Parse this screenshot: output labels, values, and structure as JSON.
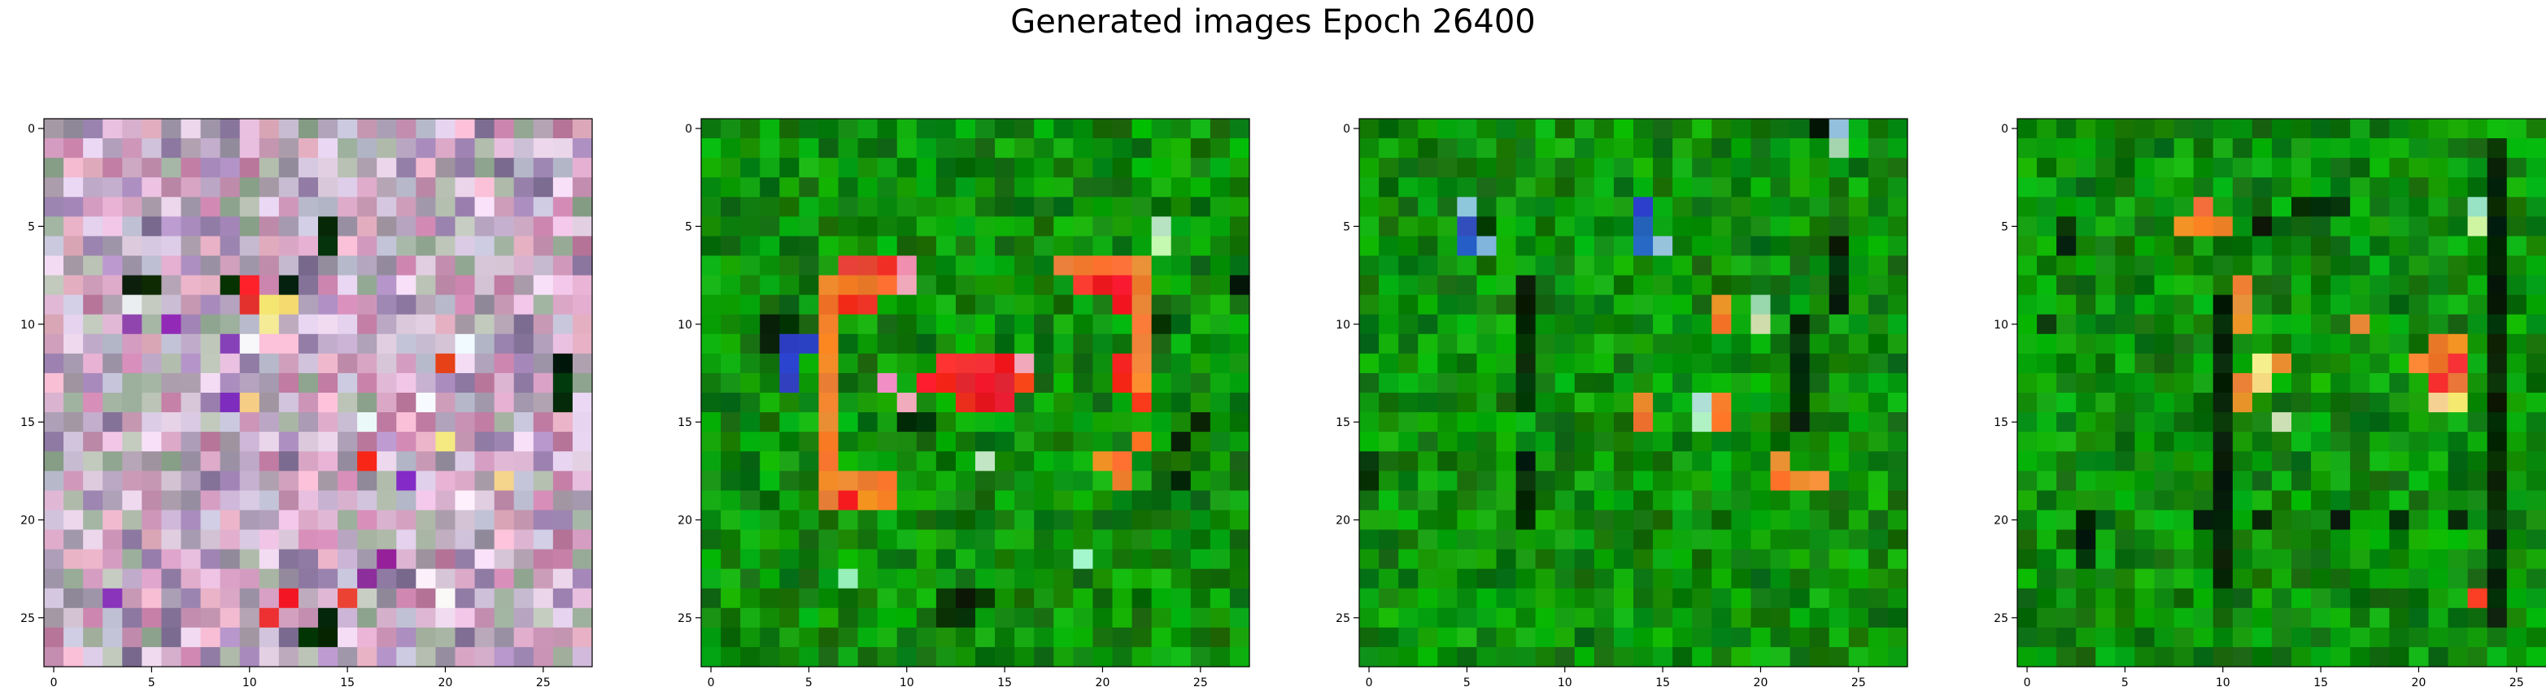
{
  "figure": {
    "title": "Generated images Epoch 26400"
  },
  "grid_size": 28,
  "tick_values": [
    0,
    5,
    10,
    15,
    20,
    25
  ],
  "tick_labels": [
    "0",
    "5",
    "10",
    "15",
    "20",
    "25"
  ],
  "panels": [
    {
      "name": "generated-image-1",
      "palette": "noisy-pastel",
      "seed": 11,
      "features": [
        {
          "type": "dark",
          "cells": [
            [
              5,
              14
            ],
            [
              6,
              14
            ],
            [
              8,
              4
            ],
            [
              8,
              5
            ],
            [
              8,
              9
            ],
            [
              8,
              12
            ],
            [
              12,
              26
            ],
            [
              13,
              26
            ],
            [
              14,
              26
            ],
            [
              26,
              13
            ],
            [
              26,
              14
            ],
            [
              25,
              14
            ]
          ]
        },
        {
          "type": "red",
          "cells": [
            [
              9,
              10
            ],
            [
              9,
              11
            ],
            [
              8,
              10
            ],
            [
              12,
              20
            ],
            [
              17,
              16
            ],
            [
              18,
              23
            ],
            [
              24,
              12
            ],
            [
              25,
              11
            ],
            [
              24,
              15
            ]
          ]
        },
        {
          "type": "yellow",
          "cells": [
            [
              9,
              11
            ],
            [
              10,
              11
            ],
            [
              9,
              12
            ],
            [
              16,
              20
            ],
            [
              18,
              23
            ],
            [
              14,
              10
            ]
          ]
        },
        {
          "type": "purple",
          "cells": [
            [
              10,
              4
            ],
            [
              10,
              6
            ],
            [
              14,
              9
            ],
            [
              18,
              18
            ],
            [
              22,
              17
            ],
            [
              24,
              3
            ],
            [
              23,
              16
            ],
            [
              11,
              9
            ]
          ]
        },
        {
          "type": "white",
          "cells": [
            [
              9,
              4
            ],
            [
              11,
              10
            ],
            [
              11,
              21
            ],
            [
              15,
              16
            ],
            [
              19,
              21
            ],
            [
              23,
              19
            ],
            [
              24,
              20
            ],
            [
              14,
              19
            ]
          ]
        }
      ]
    },
    {
      "name": "generated-image-2",
      "palette": "green",
      "seed": 23,
      "features": [
        {
          "type": "orange",
          "cells": [
            [
              8,
              6
            ],
            [
              9,
              6
            ],
            [
              10,
              6
            ],
            [
              11,
              6
            ],
            [
              12,
              6
            ],
            [
              13,
              6
            ],
            [
              14,
              6
            ],
            [
              15,
              6
            ],
            [
              16,
              6
            ],
            [
              17,
              6
            ],
            [
              18,
              6
            ],
            [
              19,
              6
            ],
            [
              18,
              7
            ],
            [
              18,
              8
            ],
            [
              18,
              9
            ],
            [
              19,
              8
            ],
            [
              19,
              9
            ],
            [
              8,
              7
            ],
            [
              8,
              8
            ],
            [
              8,
              9
            ],
            [
              8,
              10
            ],
            [
              7,
              18
            ],
            [
              7,
              19
            ],
            [
              7,
              20
            ],
            [
              7,
              21
            ],
            [
              7,
              22
            ],
            [
              8,
              22
            ],
            [
              9,
              22
            ],
            [
              10,
              22
            ],
            [
              11,
              22
            ],
            [
              12,
              22
            ],
            [
              13,
              22
            ],
            [
              17,
              20
            ],
            [
              17,
              21
            ],
            [
              16,
              22
            ],
            [
              18,
              21
            ]
          ]
        },
        {
          "type": "red",
          "cells": [
            [
              7,
              7
            ],
            [
              7,
              8
            ],
            [
              7,
              9
            ],
            [
              9,
              7
            ],
            [
              9,
              8
            ],
            [
              8,
              19
            ],
            [
              8,
              20
            ],
            [
              8,
              21
            ],
            [
              9,
              21
            ],
            [
              12,
              12
            ],
            [
              12,
              13
            ],
            [
              12,
              14
            ],
            [
              12,
              15
            ],
            [
              13,
              11
            ],
            [
              13,
              12
            ],
            [
              13,
              13
            ],
            [
              13,
              14
            ],
            [
              13,
              15
            ],
            [
              13,
              16
            ],
            [
              14,
              13
            ],
            [
              14,
              14
            ],
            [
              14,
              15
            ],
            [
              12,
              21
            ],
            [
              13,
              21
            ],
            [
              14,
              22
            ],
            [
              19,
              7
            ]
          ]
        },
        {
          "type": "pink",
          "cells": [
            [
              7,
              10
            ],
            [
              8,
              10
            ],
            [
              13,
              9
            ],
            [
              14,
              10
            ],
            [
              12,
              16
            ]
          ]
        },
        {
          "type": "blue",
          "cells": [
            [
              11,
              4
            ],
            [
              12,
              4
            ],
            [
              13,
              4
            ],
            [
              11,
              5
            ]
          ]
        },
        {
          "type": "dark",
          "cells": [
            [
              10,
              3
            ],
            [
              10,
              4
            ],
            [
              11,
              3
            ],
            [
              15,
              10
            ],
            [
              15,
              11
            ],
            [
              24,
              12
            ],
            [
              24,
              13
            ],
            [
              25,
              12
            ],
            [
              25,
              13
            ],
            [
              16,
              24
            ],
            [
              18,
              24
            ],
            [
              10,
              23
            ],
            [
              8,
              27
            ],
            [
              15,
              25
            ],
            [
              24,
              14
            ]
          ]
        },
        {
          "type": "light",
          "cells": [
            [
              5,
              23
            ],
            [
              17,
              14
            ],
            [
              22,
              19
            ],
            [
              23,
              7
            ],
            [
              6,
              23
            ]
          ]
        }
      ]
    },
    {
      "name": "generated-image-3",
      "palette": "green",
      "seed": 37,
      "features": [
        {
          "type": "dark",
          "cells": [
            [
              0,
              24
            ],
            [
              0,
              23
            ],
            [
              8,
              8
            ],
            [
              9,
              8
            ],
            [
              10,
              8
            ],
            [
              11,
              8
            ],
            [
              12,
              8
            ],
            [
              13,
              8
            ],
            [
              14,
              8
            ],
            [
              17,
              8
            ],
            [
              18,
              8
            ],
            [
              19,
              8
            ],
            [
              20,
              8
            ],
            [
              17,
              0
            ],
            [
              18,
              0
            ],
            [
              10,
              22
            ],
            [
              11,
              22
            ],
            [
              12,
              22
            ],
            [
              13,
              22
            ],
            [
              14,
              22
            ],
            [
              15,
              22
            ],
            [
              6,
              24
            ],
            [
              7,
              24
            ],
            [
              8,
              24
            ],
            [
              9,
              24
            ],
            [
              5,
              14
            ],
            [
              4,
              14
            ],
            [
              5,
              6
            ]
          ]
        },
        {
          "type": "blue",
          "cells": [
            [
              5,
              14
            ],
            [
              6,
              14
            ],
            [
              5,
              5
            ],
            [
              6,
              5
            ],
            [
              4,
              14
            ]
          ]
        },
        {
          "type": "lightblue",
          "cells": [
            [
              4,
              5
            ],
            [
              6,
              6
            ],
            [
              6,
              15
            ],
            [
              0,
              24
            ]
          ]
        },
        {
          "type": "orange",
          "cells": [
            [
              9,
              18
            ],
            [
              10,
              18
            ],
            [
              14,
              14
            ],
            [
              15,
              14
            ],
            [
              14,
              18
            ],
            [
              15,
              18
            ],
            [
              17,
              21
            ],
            [
              18,
              21
            ],
            [
              18,
              22
            ],
            [
              18,
              23
            ]
          ]
        },
        {
          "type": "light",
          "cells": [
            [
              15,
              17
            ],
            [
              14,
              17
            ],
            [
              9,
              20
            ],
            [
              10,
              20
            ],
            [
              1,
              24
            ]
          ]
        }
      ]
    },
    {
      "name": "generated-image-4",
      "palette": "green",
      "seed": 53,
      "features": [
        {
          "type": "dark",
          "cells": [
            [
              1,
              24
            ],
            [
              2,
              24
            ],
            [
              3,
              24
            ],
            [
              4,
              24
            ],
            [
              5,
              24
            ],
            [
              6,
              24
            ],
            [
              7,
              24
            ],
            [
              8,
              24
            ],
            [
              9,
              24
            ],
            [
              10,
              24
            ],
            [
              11,
              24
            ],
            [
              12,
              24
            ],
            [
              13,
              24
            ],
            [
              14,
              24
            ],
            [
              15,
              24
            ],
            [
              16,
              24
            ],
            [
              17,
              24
            ],
            [
              18,
              24
            ],
            [
              19,
              24
            ],
            [
              20,
              24
            ],
            [
              21,
              24
            ],
            [
              22,
              24
            ],
            [
              23,
              24
            ],
            [
              24,
              24
            ],
            [
              25,
              24
            ],
            [
              9,
              10
            ],
            [
              10,
              10
            ],
            [
              11,
              10
            ],
            [
              12,
              10
            ],
            [
              13,
              10
            ],
            [
              14,
              10
            ],
            [
              15,
              10
            ],
            [
              16,
              10
            ],
            [
              17,
              10
            ],
            [
              18,
              10
            ],
            [
              19,
              10
            ],
            [
              20,
              10
            ],
            [
              21,
              10
            ],
            [
              22,
              10
            ],
            [
              23,
              10
            ],
            [
              20,
              3
            ],
            [
              21,
              3
            ],
            [
              22,
              3
            ],
            [
              20,
              9
            ],
            [
              20,
              12
            ],
            [
              20,
              16
            ],
            [
              20,
              19
            ],
            [
              20,
              22
            ],
            [
              4,
              14
            ],
            [
              4,
              15
            ],
            [
              4,
              16
            ],
            [
              5,
              12
            ],
            [
              5,
              2
            ],
            [
              6,
              2
            ],
            [
              10,
              1
            ]
          ]
        },
        {
          "type": "orange",
          "cells": [
            [
              5,
              8
            ],
            [
              5,
              9
            ],
            [
              5,
              10
            ],
            [
              4,
              9
            ],
            [
              8,
              11
            ],
            [
              9,
              11
            ],
            [
              10,
              11
            ],
            [
              13,
              11
            ],
            [
              14,
              11
            ],
            [
              12,
              12
            ],
            [
              12,
              13
            ],
            [
              11,
              21
            ],
            [
              11,
              22
            ],
            [
              12,
              20
            ],
            [
              12,
              21
            ],
            [
              13,
              22
            ],
            [
              14,
              21
            ],
            [
              10,
              17
            ]
          ]
        },
        {
          "type": "red",
          "cells": [
            [
              12,
              22
            ],
            [
              13,
              21
            ],
            [
              24,
              23
            ]
          ]
        },
        {
          "type": "yellow",
          "cells": [
            [
              13,
              12
            ],
            [
              12,
              12
            ],
            [
              14,
              21
            ],
            [
              14,
              22
            ]
          ]
        },
        {
          "type": "light",
          "cells": [
            [
              4,
              23
            ],
            [
              5,
              23
            ],
            [
              15,
              13
            ]
          ]
        }
      ]
    }
  ],
  "colors": {
    "axes_frame": "#000000",
    "tick": "#000000",
    "background": "#ffffff"
  }
}
